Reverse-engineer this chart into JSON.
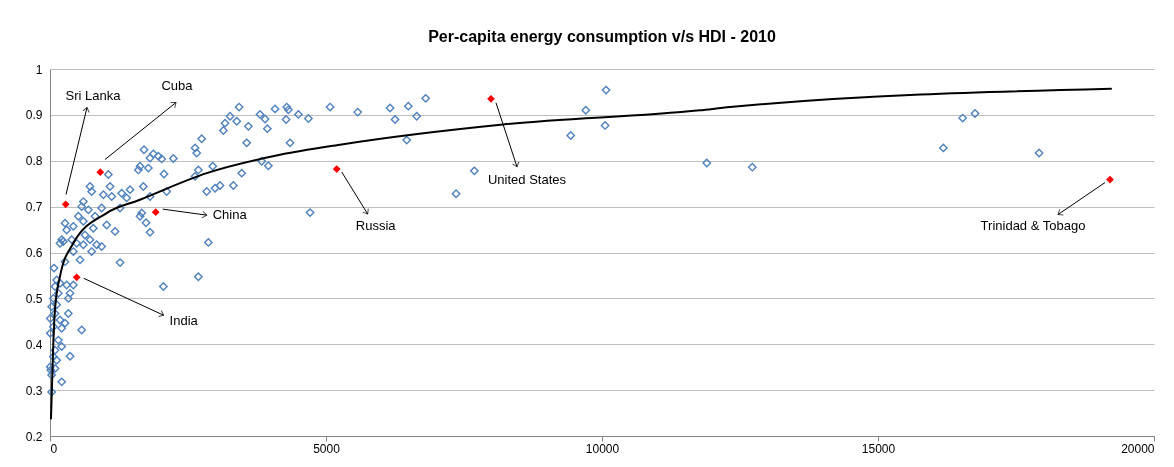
{
  "chart_data": {
    "type": "scatter",
    "title": "Per-capita energy consumption v/s HDI - 2010",
    "xlim": [
      0,
      20000
    ],
    "xticks": [
      0,
      5000,
      10000,
      15000,
      20000
    ],
    "ylim": [
      0.2,
      1
    ],
    "yticks": [
      0.2,
      0.3,
      0.4,
      0.5,
      0.6,
      0.7,
      0.8,
      0.9,
      1
    ],
    "grid": "y",
    "marker": "diamond",
    "series": [
      {
        "color": "#4f81bd",
        "x": [
          3425,
          3171,
          3141,
          3262,
          3383,
          3594,
          3564,
          3805,
          3896,
          3938,
          4077,
          4289,
          4319,
          4277,
          4500,
          4681,
          4349,
          5074,
          3836,
          3956,
          3473,
          3322,
          2948,
          2748,
          2628,
          2658,
          2688,
          2628,
          2839,
          2990,
          3081,
          4711,
          1703,
          1873,
          1963,
          1812,
          2024,
          2235,
          1631,
          1601,
          1782,
          2066,
          1691,
          1812,
          2114,
          1450,
          1299,
          1269,
          1389,
          1661,
          1631,
          1740,
          1812,
          2869,
          2688,
          2054,
          1269,
          1178,
          1027,
          1057,
          1087,
          967,
          1118,
          936,
          816,
          725,
          755,
          604,
          514,
          574,
          695,
          785,
          604,
          634,
          725,
          846,
          936,
          755,
          604,
          483,
          393,
          423,
          302,
          272,
          242,
          212,
          181,
          544,
          423,
          272,
          73,
          121,
          91,
          181,
          302,
          423,
          363,
          332,
          151,
          61,
          30,
          121,
          91,
          5,
          181,
          61,
          5,
          212,
          332,
          272,
          151,
          212,
          91,
          61,
          5,
          15,
          30,
          91,
          121,
          363,
          574,
          212,
          30,
          5574,
          6160,
          6251,
          6492,
          6643,
          6806,
          6462,
          7356,
          7688,
          9434,
          9706,
          10074,
          10056,
          11898,
          12723,
          16184,
          16534,
          16758,
          17918
        ],
        "values": [
          0.917,
          0.882,
          0.866,
          0.897,
          0.886,
          0.875,
          0.839,
          0.901,
          0.891,
          0.87,
          0.913,
          0.917,
          0.911,
          0.89,
          0.901,
          0.892,
          0.839,
          0.917,
          0.799,
          0.789,
          0.773,
          0.746,
          0.788,
          0.848,
          0.828,
          0.817,
          0.78,
          0.766,
          0.733,
          0.74,
          0.746,
          0.687,
          0.824,
          0.815,
          0.81,
          0.806,
          0.804,
          0.805,
          0.788,
          0.78,
          0.784,
          0.771,
          0.744,
          0.722,
          0.733,
          0.737,
          0.729,
          0.697,
          0.719,
          0.686,
          0.679,
          0.665,
          0.644,
          0.622,
          0.547,
          0.526,
          0.578,
          0.646,
          0.66,
          0.77,
          0.744,
          0.726,
          0.722,
          0.697,
          0.679,
          0.744,
          0.733,
          0.711,
          0.679,
          0.7,
          0.693,
          0.653,
          0.668,
          0.638,
          0.628,
          0.617,
          0.613,
          0.602,
          0.617,
          0.62,
          0.628,
          0.657,
          0.649,
          0.664,
          0.624,
          0.628,
          0.62,
          0.584,
          0.602,
          0.58,
          0.566,
          0.54,
          0.526,
          0.533,
          0.529,
          0.529,
          0.511,
          0.5,
          0.511,
          0.5,
          0.482,
          0.486,
          0.467,
          0.456,
          0.453,
          0.438,
          0.424,
          0.435,
          0.467,
          0.446,
          0.409,
          0.395,
          0.387,
          0.373,
          0.351,
          0.344,
          0.333,
          0.347,
          0.365,
          0.374,
          0.431,
          0.318,
          0.296,
          0.906,
          0.915,
          0.89,
          0.919,
          0.897,
          0.936,
          0.845,
          0.728,
          0.778,
          0.855,
          0.91,
          0.954,
          0.877,
          0.795,
          0.786,
          0.828,
          0.893,
          0.903,
          0.817
        ]
      },
      {
        "color": "#ff0000",
        "x": [
          284,
          911,
          1915,
          483,
          5194,
          7989,
          19203
        ],
        "values": [
          0.705,
          0.775,
          0.688,
          0.546,
          0.782,
          0.935,
          0.759
        ]
      },
      {
        "type": "line",
        "color": "#000000",
        "line_style": "solid",
        "marker": "none",
        "x": [
          18,
          60,
          90,
          181,
          422,
          1027,
          1630,
          2839,
          4167,
          5254,
          8207,
          11775,
          12319,
          19221
        ],
        "values": [
          0.238,
          0.402,
          0.475,
          0.548,
          0.62,
          0.686,
          0.715,
          0.773,
          0.813,
          0.835,
          0.879,
          0.91,
          0.917,
          0.957
        ]
      }
    ],
    "annotations": [
      "Sri Lanka",
      "Cuba",
      {
        "text": "China",
        "x": 1915,
        "y": 0.688
      },
      {
        "text": "India",
        "x": 483,
        "y": 0.546
      },
      {
        "text": "Russia",
        "x": 5194,
        "y": 0.782
      },
      {
        "text": "United States",
        "x": 7989,
        "y": 0.935
      },
      {
        "text": "Trinidad & Tobago",
        "x": 19203,
        "y": 0.759
      }
    ]
  }
}
